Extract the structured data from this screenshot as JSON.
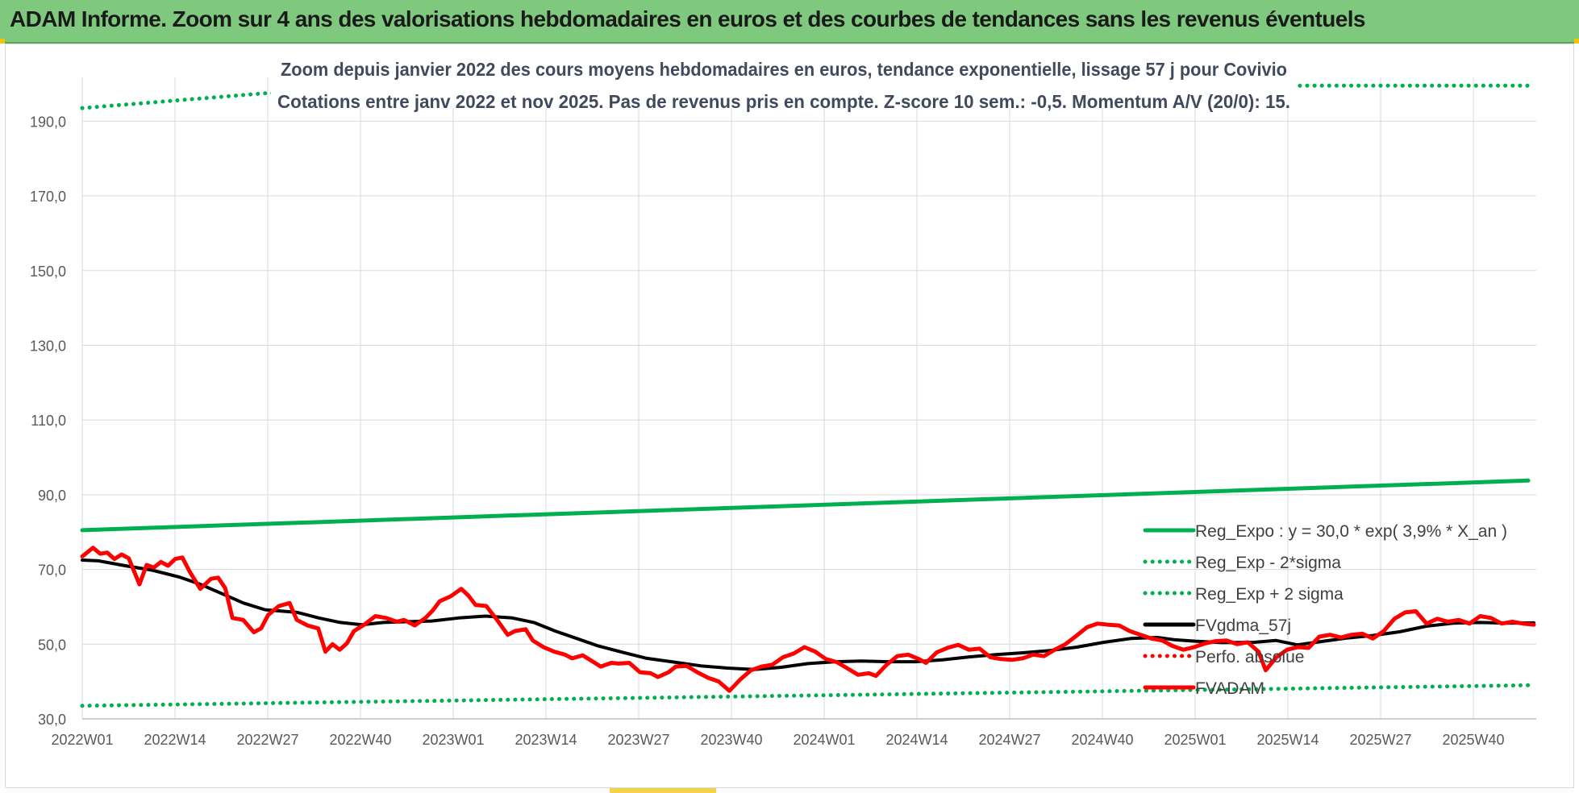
{
  "banner": {
    "title": "ADAM Informe. Zoom sur 4 ans des valorisations hebdomadaires en euros et des courbes de tendances sans les revenus éventuels"
  },
  "chart_data": {
    "type": "line",
    "title": "Zoom depuis janvier 2022 des cours moyens hebdomadaires en euros, tendance exponentielle, lissage 57 j pour Covivio",
    "subtitle": "Cotations entre janv 2022 et nov 2025. Pas de revenus pris en compte. Z-score 10 sem.: -0,5. Momentum A/V (20/0): 15.",
    "xlabel": "",
    "ylabel": "",
    "ylim": [
      30,
      200
    ],
    "yticks": [
      "30,0",
      "50,0",
      "70,0",
      "90,0",
      "110,0",
      "130,0",
      "150,0",
      "170,0",
      "190,0"
    ],
    "x_tick_labels": [
      "2022W01",
      "2022W14",
      "2022W27",
      "2022W40",
      "2023W01",
      "2023W14",
      "2023W27",
      "2023W40",
      "2024W01",
      "2024W14",
      "2024W27",
      "2024W40",
      "2025W01",
      "2025W14",
      "2025W27",
      "2025W40"
    ],
    "n_weeks": 205,
    "grid": true,
    "legend_position": "bottom-right",
    "colors": {
      "green": "#00b050",
      "red": "#ff0000",
      "black": "#000000",
      "grid": "#d9d9d9"
    },
    "series": [
      {
        "name": "Reg_Expo : y = 30,0 * exp( 3,9% *  X_an )",
        "style": "solid",
        "color": "#00b050",
        "points": [
          [
            0,
            80.5
          ],
          [
            204,
            93.8
          ]
        ]
      },
      {
        "name": "Reg_Exp - 2*sigma",
        "style": "dotted",
        "color": "#00b050",
        "points": [
          [
            0,
            33.5
          ],
          [
            204,
            39.0
          ]
        ]
      },
      {
        "name": "Reg_Exp + 2 sigma",
        "style": "dotted",
        "color": "#00b050",
        "points": [
          [
            0,
            193.5
          ],
          [
            204,
            199.5
          ]
        ]
      },
      {
        "name": "FVgdma_57j",
        "style": "solid",
        "color": "#000000",
        "points": [
          [
            0,
            72.5
          ],
          [
            3,
            72.3
          ],
          [
            8,
            71.0
          ],
          [
            13,
            69.8
          ],
          [
            18,
            68.0
          ],
          [
            22,
            66.0
          ],
          [
            26,
            63.5
          ],
          [
            30,
            61.0
          ],
          [
            34,
            59.2
          ],
          [
            40,
            58.5
          ],
          [
            44,
            57.0
          ],
          [
            48,
            55.8
          ],
          [
            52,
            55.2
          ],
          [
            56,
            55.8
          ],
          [
            60,
            56.0
          ],
          [
            65,
            56.2
          ],
          [
            70,
            57.0
          ],
          [
            75,
            57.5
          ],
          [
            80,
            57.0
          ],
          [
            84,
            55.8
          ],
          [
            88,
            53.5
          ],
          [
            92,
            51.5
          ],
          [
            96,
            49.5
          ],
          [
            100,
            48.0
          ],
          [
            105,
            46.2
          ],
          [
            110,
            45.2
          ],
          [
            115,
            44.2
          ],
          [
            120,
            43.6
          ],
          [
            125,
            43.2
          ],
          [
            130,
            43.8
          ],
          [
            135,
            44.8
          ],
          [
            140,
            45.3
          ],
          [
            145,
            45.5
          ],
          [
            150,
            45.3
          ],
          [
            155,
            45.3
          ],
          [
            160,
            45.8
          ],
          [
            165,
            46.6
          ],
          [
            170,
            47.2
          ],
          [
            175,
            47.7
          ],
          [
            180,
            48.3
          ],
          [
            185,
            49.2
          ],
          [
            190,
            50.5
          ],
          [
            195,
            51.5
          ],
          [
            200,
            51.8
          ],
          [
            203,
            51.2
          ],
          [
            207,
            50.8
          ],
          [
            212,
            50.4
          ],
          [
            218,
            50.5
          ],
          [
            222,
            51.0
          ],
          [
            226,
            49.8
          ],
          [
            230,
            50.6
          ],
          [
            235,
            51.6
          ],
          [
            240,
            52.3
          ],
          [
            245,
            53.3
          ],
          [
            250,
            54.8
          ],
          [
            255,
            55.6
          ],
          [
            260,
            55.8
          ],
          [
            265,
            55.6
          ],
          [
            270,
            55.7
          ]
        ]
      },
      {
        "name": "Perfo. absolue",
        "style": "dotted",
        "color": "#ff0000",
        "points": []
      },
      {
        "name": "FVADAM",
        "style": "solid-thick",
        "color": "#ff0000",
        "points": [
          [
            0,
            73.5
          ],
          [
            3,
            75.8
          ],
          [
            5,
            74.2
          ],
          [
            7,
            74.5
          ],
          [
            9,
            72.8
          ],
          [
            11,
            74.0
          ],
          [
            13,
            73.0
          ],
          [
            16,
            66.0
          ],
          [
            18,
            71.2
          ],
          [
            20,
            70.5
          ],
          [
            22,
            72.0
          ],
          [
            24,
            71.0
          ],
          [
            26,
            72.8
          ],
          [
            28,
            73.2
          ],
          [
            30,
            69.5
          ],
          [
            33,
            64.8
          ],
          [
            36,
            67.5
          ],
          [
            38,
            67.8
          ],
          [
            40,
            65.0
          ],
          [
            42,
            57.0
          ],
          [
            45,
            56.5
          ],
          [
            48,
            53.2
          ],
          [
            50,
            54.2
          ],
          [
            52,
            57.8
          ],
          [
            55,
            60.2
          ],
          [
            58,
            61.0
          ],
          [
            60,
            56.5
          ],
          [
            63,
            55.0
          ],
          [
            66,
            54.2
          ],
          [
            68,
            48.0
          ],
          [
            70,
            50.0
          ],
          [
            72,
            48.5
          ],
          [
            74,
            50.2
          ],
          [
            76,
            53.5
          ],
          [
            79,
            55.3
          ],
          [
            82,
            57.5
          ],
          [
            85,
            57.0
          ],
          [
            88,
            56.0
          ],
          [
            90,
            56.5
          ],
          [
            93,
            55.0
          ],
          [
            96,
            57.0
          ],
          [
            98,
            59.0
          ],
          [
            100,
            61.5
          ],
          [
            103,
            62.8
          ],
          [
            106,
            64.8
          ],
          [
            108,
            63.0
          ],
          [
            110,
            60.5
          ],
          [
            113,
            60.2
          ],
          [
            116,
            56.5
          ],
          [
            119,
            52.5
          ],
          [
            121,
            53.5
          ],
          [
            124,
            54.0
          ],
          [
            126,
            51.0
          ],
          [
            129,
            49.2
          ],
          [
            132,
            48.0
          ],
          [
            135,
            47.2
          ],
          [
            137,
            46.2
          ],
          [
            140,
            47.0
          ],
          [
            143,
            45.2
          ],
          [
            145,
            44.0
          ],
          [
            148,
            45.0
          ],
          [
            150,
            44.8
          ],
          [
            153,
            45.0
          ],
          [
            156,
            42.5
          ],
          [
            159,
            42.2
          ],
          [
            161,
            41.2
          ],
          [
            164,
            42.5
          ],
          [
            166,
            44.0
          ],
          [
            169,
            44.2
          ],
          [
            172,
            42.5
          ],
          [
            175,
            41.0
          ],
          [
            178,
            40.0
          ],
          [
            181,
            37.5
          ],
          [
            184,
            40.5
          ],
          [
            187,
            43.0
          ],
          [
            190,
            44.0
          ],
          [
            193,
            44.5
          ],
          [
            196,
            46.5
          ],
          [
            199,
            47.5
          ],
          [
            202,
            49.2
          ],
          [
            205,
            48.0
          ],
          [
            208,
            46.0
          ],
          [
            211,
            45.2
          ],
          [
            214,
            43.5
          ],
          [
            217,
            41.8
          ],
          [
            220,
            42.2
          ],
          [
            222,
            41.5
          ],
          [
            225,
            44.5
          ],
          [
            228,
            46.8
          ],
          [
            231,
            47.2
          ],
          [
            234,
            46.0
          ],
          [
            236,
            45.0
          ],
          [
            239,
            47.8
          ],
          [
            242,
            49.0
          ],
          [
            245,
            49.8
          ],
          [
            248,
            48.5
          ],
          [
            251,
            48.8
          ],
          [
            254,
            46.5
          ],
          [
            257,
            46.0
          ],
          [
            260,
            45.8
          ],
          [
            263,
            46.2
          ],
          [
            266,
            47.2
          ],
          [
            269,
            46.8
          ],
          [
            272,
            48.5
          ],
          [
            275,
            50.0
          ],
          [
            278,
            52.2
          ],
          [
            281,
            54.5
          ],
          [
            284,
            55.5
          ],
          [
            287,
            55.2
          ],
          [
            290,
            55.0
          ],
          [
            293,
            53.5
          ],
          [
            296,
            52.5
          ],
          [
            299,
            51.5
          ],
          [
            302,
            51.0
          ],
          [
            305,
            49.5
          ],
          [
            308,
            48.5
          ],
          [
            311,
            49.2
          ],
          [
            314,
            50.2
          ],
          [
            317,
            50.8
          ],
          [
            320,
            51.0
          ],
          [
            323,
            50.0
          ],
          [
            326,
            50.5
          ],
          [
            329,
            48.0
          ],
          [
            331,
            43.0
          ],
          [
            334,
            46.5
          ],
          [
            337,
            48.5
          ],
          [
            340,
            49.2
          ],
          [
            343,
            49.0
          ],
          [
            346,
            52.0
          ],
          [
            349,
            52.5
          ],
          [
            352,
            51.8
          ],
          [
            355,
            52.5
          ],
          [
            358,
            52.8
          ],
          [
            361,
            51.5
          ],
          [
            364,
            53.5
          ],
          [
            367,
            56.8
          ],
          [
            370,
            58.5
          ],
          [
            373,
            58.8
          ],
          [
            376,
            55.5
          ],
          [
            379,
            56.8
          ],
          [
            382,
            56.0
          ],
          [
            385,
            56.5
          ],
          [
            388,
            55.5
          ],
          [
            391,
            57.5
          ],
          [
            394,
            57.0
          ],
          [
            397,
            55.5
          ],
          [
            400,
            56.0
          ],
          [
            403,
            55.5
          ],
          [
            406,
            55.2
          ]
        ]
      }
    ]
  }
}
